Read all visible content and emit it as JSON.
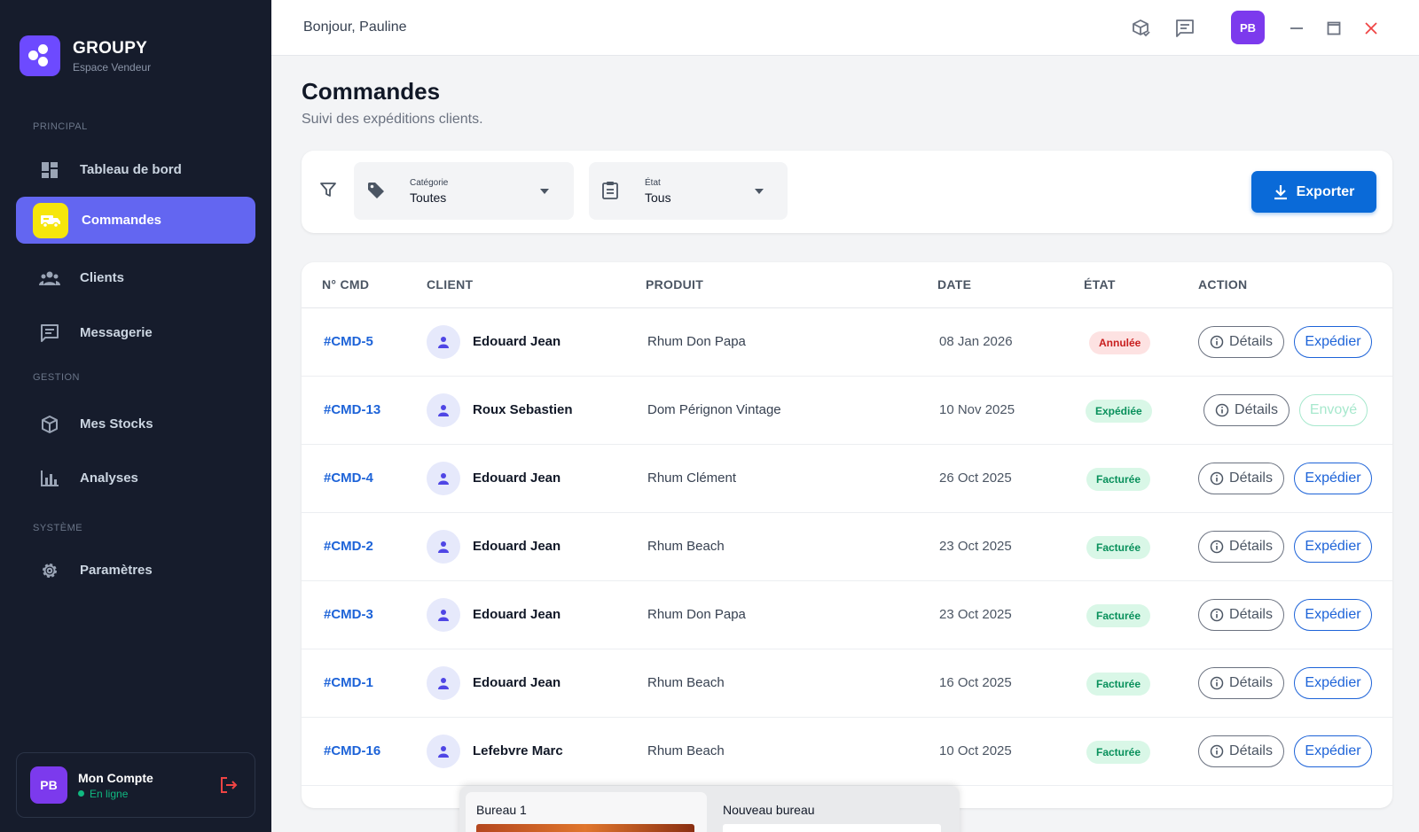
{
  "brand": {
    "name": "GROUPY",
    "subtitle": "Espace Vendeur"
  },
  "sidebar": {
    "sections": [
      {
        "label": "Principal"
      },
      {
        "label": "Gestion"
      },
      {
        "label": "Système"
      }
    ],
    "items": [
      {
        "label": "Tableau de bord",
        "icon": "dashboard-icon"
      },
      {
        "label": "Commandes",
        "icon": "truck-icon",
        "active": true
      },
      {
        "label": "Clients",
        "icon": "users-icon"
      },
      {
        "label": "Messagerie",
        "icon": "message-icon"
      },
      {
        "label": "Mes Stocks",
        "icon": "box-icon"
      },
      {
        "label": "Analyses",
        "icon": "bar-chart-icon"
      },
      {
        "label": "Paramètres",
        "icon": "gear-icon"
      }
    ],
    "account": {
      "initials": "PB",
      "name": "Mon Compte",
      "status": "En ligne"
    }
  },
  "topbar": {
    "greeting": "Bonjour, Pauline",
    "avatar_initials": "PB"
  },
  "page": {
    "title": "Commandes",
    "subtitle": "Suivi des expéditions clients."
  },
  "filters": {
    "category": {
      "label": "Catégorie",
      "value": "Toutes"
    },
    "state": {
      "label": "État",
      "value": "Tous"
    },
    "export_label": "Exporter"
  },
  "table": {
    "columns": [
      "N° CMD",
      "CLIENT",
      "PRODUIT",
      "DATE",
      "ÉTAT",
      "ACTION"
    ],
    "rows": [
      {
        "id": "#CMD-5",
        "client": "Edouard Jean",
        "product": "Rhum Don Papa",
        "date": "08 Jan 2026",
        "status": "Annulée",
        "details": "Détails",
        "action": "Expédier"
      },
      {
        "id": "#CMD-13",
        "client": "Roux Sebastien",
        "product": "Dom Pérignon Vintage",
        "date": "10 Nov 2025",
        "status": "Expédiée",
        "details": "Détails",
        "action": "Envoyé"
      },
      {
        "id": "#CMD-4",
        "client": "Edouard Jean",
        "product": "Rhum Clément",
        "date": "26 Oct 2025",
        "status": "Facturée",
        "details": "Détails",
        "action": "Expédier"
      },
      {
        "id": "#CMD-2",
        "client": "Edouard Jean",
        "product": "Rhum Beach",
        "date": "23 Oct 2025",
        "status": "Facturée",
        "details": "Détails",
        "action": "Expédier"
      },
      {
        "id": "#CMD-3",
        "client": "Edouard Jean",
        "product": "Rhum Don Papa",
        "date": "23 Oct 2025",
        "status": "Facturée",
        "details": "Détails",
        "action": "Expédier"
      },
      {
        "id": "#CMD-1",
        "client": "Edouard Jean",
        "product": "Rhum Beach",
        "date": "16 Oct 2025",
        "status": "Facturée",
        "details": "Détails",
        "action": "Expédier"
      },
      {
        "id": "#CMD-16",
        "client": "Lefebvre Marc",
        "product": "Rhum Beach",
        "date": "10 Oct 2025",
        "status": "Facturée",
        "details": "Détails",
        "action": "Expédier"
      }
    ]
  },
  "workspaces": {
    "current": "Bureau 1",
    "new": "Nouveau bureau"
  },
  "colors": {
    "sidebar": "#161c2c",
    "accent": "#6366f1",
    "primary": "#0a6ad8",
    "link": "#1d63d8",
    "danger": "#c81e1e",
    "success": "#08905b"
  }
}
